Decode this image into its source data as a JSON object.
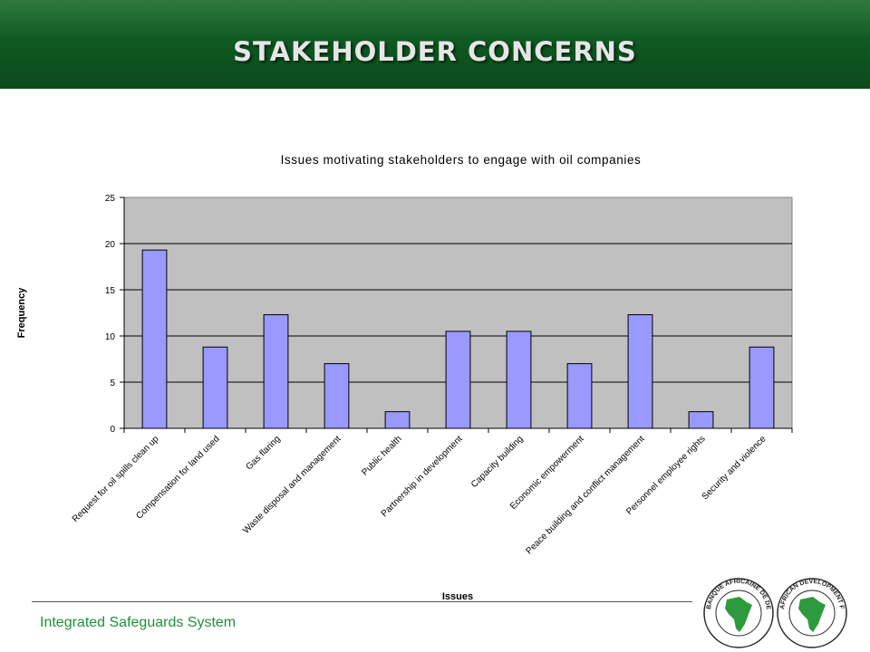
{
  "slide": {
    "title": "STAKEHOLDER CONCERNS",
    "footer": "Integrated Safeguards System",
    "logo_left_text": "BANQUE AFRICAINE DE DEVELOPPEMENT · AFRICAN DEVELOPMENT BANK",
    "logo_right_text": "AFRICAN DEVELOPMENT FUND · FONDS AFRICAIN DE DEVELOPPEMENT"
  },
  "colors": {
    "header_green": "#0f5a22",
    "bar_fill": "#9999ff",
    "plot_bg": "#c0c0c0",
    "footer_text": "#1f8f3a"
  },
  "chart_data": {
    "type": "bar",
    "title": "Issues motivating stakeholders to engage with oil companies",
    "xlabel": "Issues",
    "ylabel": "Frequency",
    "ylim": [
      0,
      25
    ],
    "yticks": [
      0,
      5,
      10,
      15,
      20,
      25
    ],
    "grid": true,
    "categories": [
      "Request for oil spills clean up",
      "Compensation for land used",
      "Gas flaring",
      "Waste disposal and management",
      "Public health",
      "Partnership in development",
      "Capacity building",
      "Economic empowerment",
      "Peace building and conflict management",
      "Personnel employee rights",
      "Security and violence"
    ],
    "values": [
      19.3,
      8.8,
      12.3,
      7.0,
      1.8,
      10.5,
      10.5,
      7.0,
      12.3,
      1.8,
      8.8
    ]
  }
}
